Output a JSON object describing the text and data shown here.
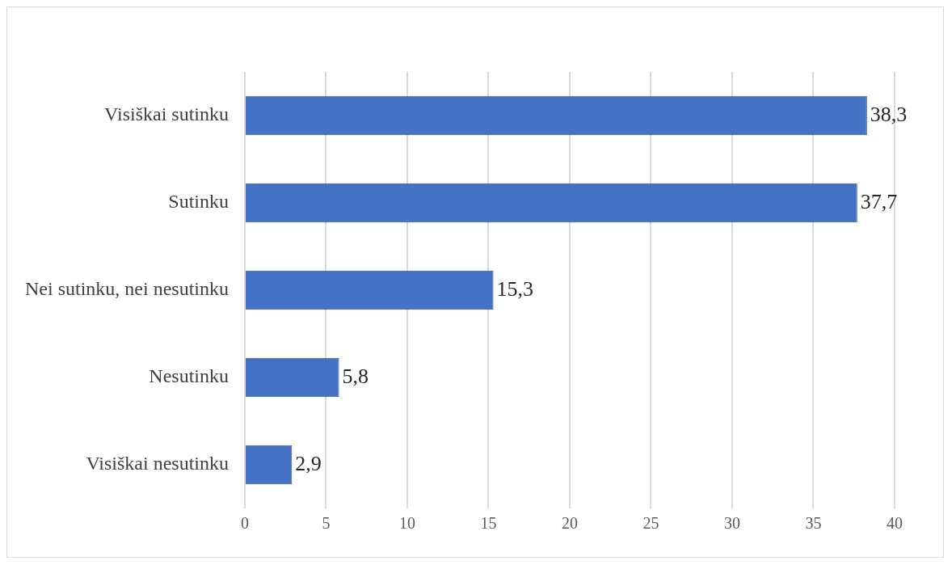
{
  "chart_data": {
    "type": "bar",
    "orientation": "horizontal",
    "categories": [
      "Visiškai sutinku",
      "Sutinku",
      "Nei sutinku, nei nesutinku",
      "Nesutinku",
      "Visiškai nesutinku"
    ],
    "values": [
      38.3,
      37.7,
      15.3,
      5.8,
      2.9
    ],
    "value_labels": [
      "38,3",
      "37,7",
      "15,3",
      "5,8",
      "2,9"
    ],
    "color": "#4472c4",
    "xlim": [
      0,
      40
    ],
    "xticks": [
      0,
      5,
      10,
      15,
      20,
      25,
      30,
      35,
      40
    ],
    "grid": "x",
    "legend": false
  }
}
